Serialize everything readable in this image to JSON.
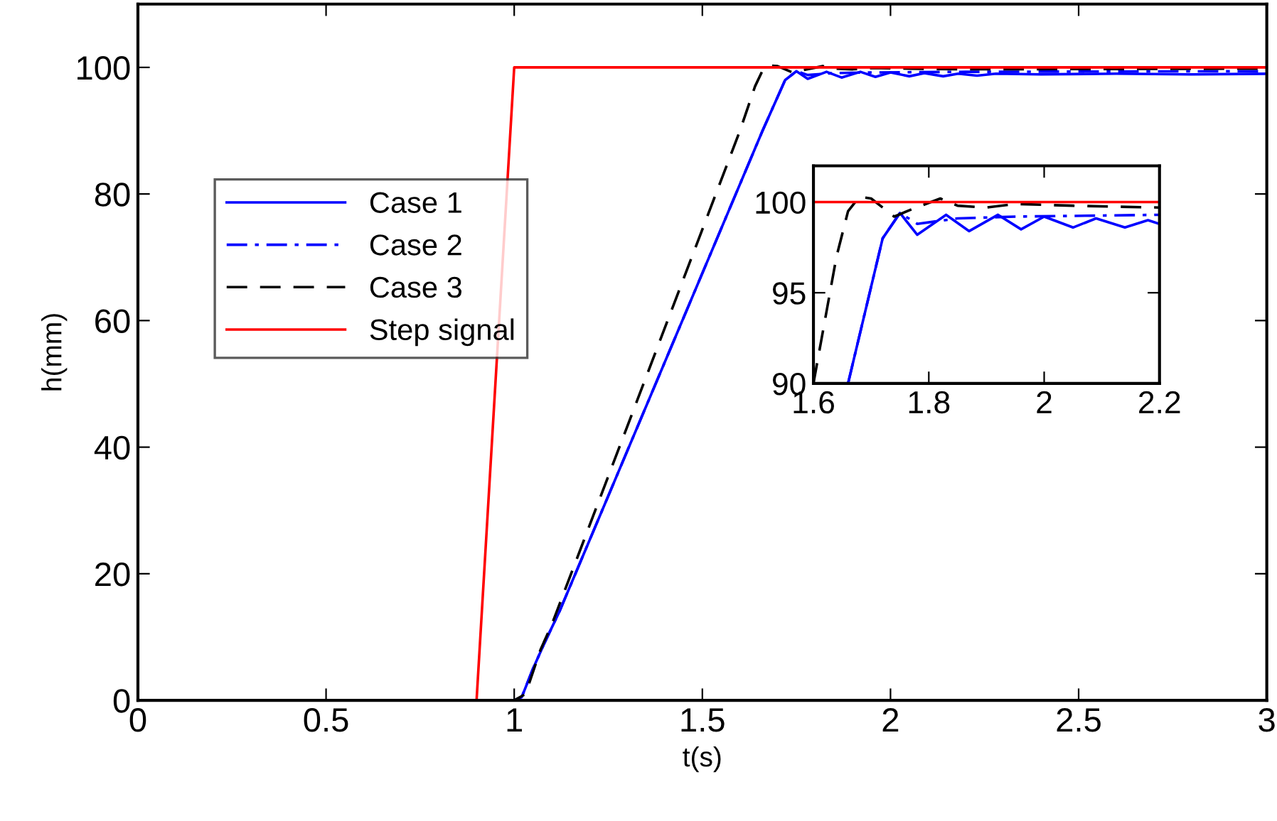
{
  "chart_data": [
    {
      "type": "line",
      "xlabel": "t(s)",
      "ylabel": "h(mm)",
      "xlim": [
        0,
        3
      ],
      "ylim": [
        0,
        110
      ],
      "xticks": [
        0,
        0.5,
        1,
        1.5,
        2,
        2.5,
        3
      ],
      "yticks": [
        0,
        20,
        40,
        60,
        80,
        100
      ],
      "grid": false,
      "legend": "center left",
      "series": [
        {
          "name": "Case 1",
          "color": "#0000ff",
          "line_style": "solid",
          "x": [
            0,
            1.0,
            1.02,
            1.05,
            1.08,
            1.12,
            1.66,
            1.72,
            1.75,
            1.78,
            1.83,
            1.87,
            1.92,
            1.96,
            2.0,
            2.05,
            2.09,
            2.14,
            2.18,
            2.23,
            2.28,
            2.4,
            2.6,
            2.8,
            3.0
          ],
          "values": [
            0,
            0,
            0.5,
            5,
            9,
            14,
            90,
            98,
            99.4,
            98.2,
            99.3,
            98.4,
            99.3,
            98.5,
            99.2,
            98.6,
            99.1,
            98.6,
            99.0,
            98.7,
            99.0,
            98.9,
            99.0,
            98.9,
            99.0
          ]
        },
        {
          "name": "Case 2",
          "color": "#0000ff",
          "line_style": "dashdot",
          "x": [
            0,
            1.0,
            1.02,
            1.05,
            1.08,
            1.12,
            1.66,
            1.72,
            1.75,
            1.78,
            1.85,
            1.95,
            2.2,
            3.0
          ],
          "values": [
            0,
            0,
            0.5,
            5,
            9,
            14,
            90,
            98,
            99.4,
            98.8,
            99.1,
            99.2,
            99.3,
            99.4
          ]
        },
        {
          "name": "Case 3",
          "color": "#000000",
          "line_style": "dashed",
          "x": [
            0,
            1.0,
            1.03,
            1.07,
            1.1,
            1.6,
            1.64,
            1.66,
            1.68,
            1.7,
            1.74,
            1.77,
            1.82,
            1.85,
            1.9,
            1.95,
            2.05,
            2.2,
            3.0
          ],
          "values": [
            0,
            0,
            1,
            8,
            12,
            90,
            97,
            99.5,
            100.3,
            100.2,
            99.2,
            99.6,
            100.2,
            99.8,
            99.7,
            99.9,
            99.8,
            99.7,
            99.8
          ]
        },
        {
          "name": "Step signal",
          "color": "#ff0000",
          "line_style": "solid",
          "x": [
            0,
            0.9,
            1.0,
            3.0
          ],
          "values": [
            0,
            0,
            100,
            100
          ]
        }
      ]
    },
    {
      "type": "line",
      "xlim": [
        1.6,
        2.2
      ],
      "ylim": [
        90,
        102
      ],
      "xticks": [
        1.6,
        1.8,
        2,
        2.2
      ],
      "yticks": [
        90,
        95,
        100
      ],
      "grid": false,
      "series": [
        {
          "color": "#0000ff",
          "line_style": "solid",
          "x": [
            1.66,
            1.72,
            1.75,
            1.78,
            1.83,
            1.87,
            1.92,
            1.96,
            2.0,
            2.05,
            2.09,
            2.14,
            2.18,
            2.2
          ],
          "values": [
            90,
            98,
            99.4,
            98.2,
            99.3,
            98.4,
            99.3,
            98.5,
            99.2,
            98.6,
            99.1,
            98.6,
            99.0,
            98.8
          ]
        },
        {
          "color": "#0000ff",
          "line_style": "dashdot",
          "x": [
            1.66,
            1.72,
            1.75,
            1.78,
            1.85,
            1.95,
            2.2
          ],
          "values": [
            90,
            98,
            99.4,
            98.8,
            99.1,
            99.2,
            99.3
          ]
        },
        {
          "color": "#000000",
          "line_style": "dashed",
          "x": [
            1.6,
            1.64,
            1.66,
            1.68,
            1.7,
            1.74,
            1.77,
            1.82,
            1.85,
            1.9,
            1.95,
            2.05,
            2.2
          ],
          "values": [
            90,
            97,
            99.5,
            100.3,
            100.2,
            99.2,
            99.6,
            100.2,
            99.8,
            99.7,
            99.9,
            99.8,
            99.7
          ]
        },
        {
          "color": "#ff0000",
          "line_style": "solid",
          "x": [
            1.6,
            2.2
          ],
          "values": [
            100,
            100
          ]
        }
      ]
    }
  ]
}
